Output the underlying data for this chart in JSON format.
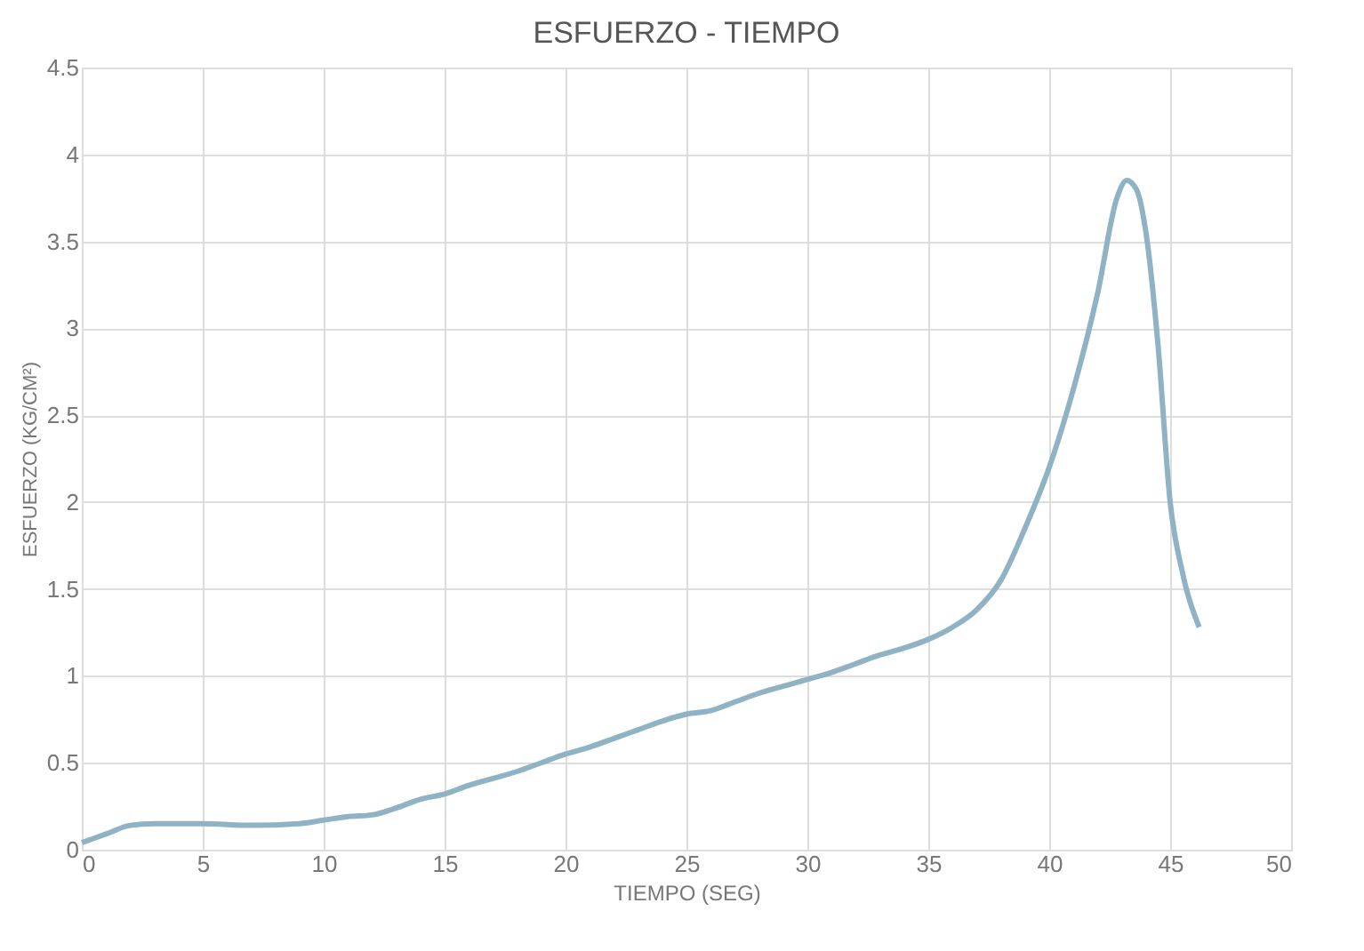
{
  "chart_data": {
    "type": "line",
    "title": "ESFUERZO - TIEMPO",
    "xlabel": "TIEMPO (SEG)",
    "ylabel": "ESFUERZO (KG/CM²)",
    "x": [
      0,
      1,
      2,
      3,
      5,
      7,
      9,
      10,
      11,
      12,
      13,
      14,
      15,
      16,
      17,
      18,
      19,
      20,
      21,
      22,
      23,
      24,
      25,
      26,
      27,
      28,
      29,
      30,
      31,
      32,
      33,
      34,
      35,
      36,
      37,
      38,
      39,
      40,
      41,
      42,
      42.8,
      43.2,
      43.6,
      44,
      44.5,
      45,
      45.5,
      46.2
    ],
    "series": [
      {
        "color": "#8fb3c4",
        "values": [
          0.04,
          0.09,
          0.14,
          0.15,
          0.15,
          0.14,
          0.15,
          0.17,
          0.19,
          0.2,
          0.24,
          0.29,
          0.32,
          0.37,
          0.41,
          0.45,
          0.5,
          0.55,
          0.59,
          0.64,
          0.69,
          0.74,
          0.78,
          0.8,
          0.85,
          0.9,
          0.94,
          0.98,
          1.02,
          1.07,
          1.12,
          1.16,
          1.21,
          1.28,
          1.38,
          1.55,
          1.85,
          2.2,
          2.65,
          3.2,
          3.75,
          3.85,
          3.8,
          3.55,
          2.9,
          2.0,
          1.6,
          1.28
        ]
      }
    ],
    "xlim": [
      0,
      50
    ],
    "xticks": [
      0,
      5,
      10,
      15,
      20,
      25,
      30,
      35,
      40,
      45,
      50
    ],
    "ylim": [
      0,
      4.5
    ],
    "yticks": [
      0,
      0.5,
      1,
      1.5,
      2,
      2.5,
      3,
      3.5,
      4,
      4.5
    ],
    "grid": true,
    "marker": "none",
    "line_style": "solid"
  }
}
